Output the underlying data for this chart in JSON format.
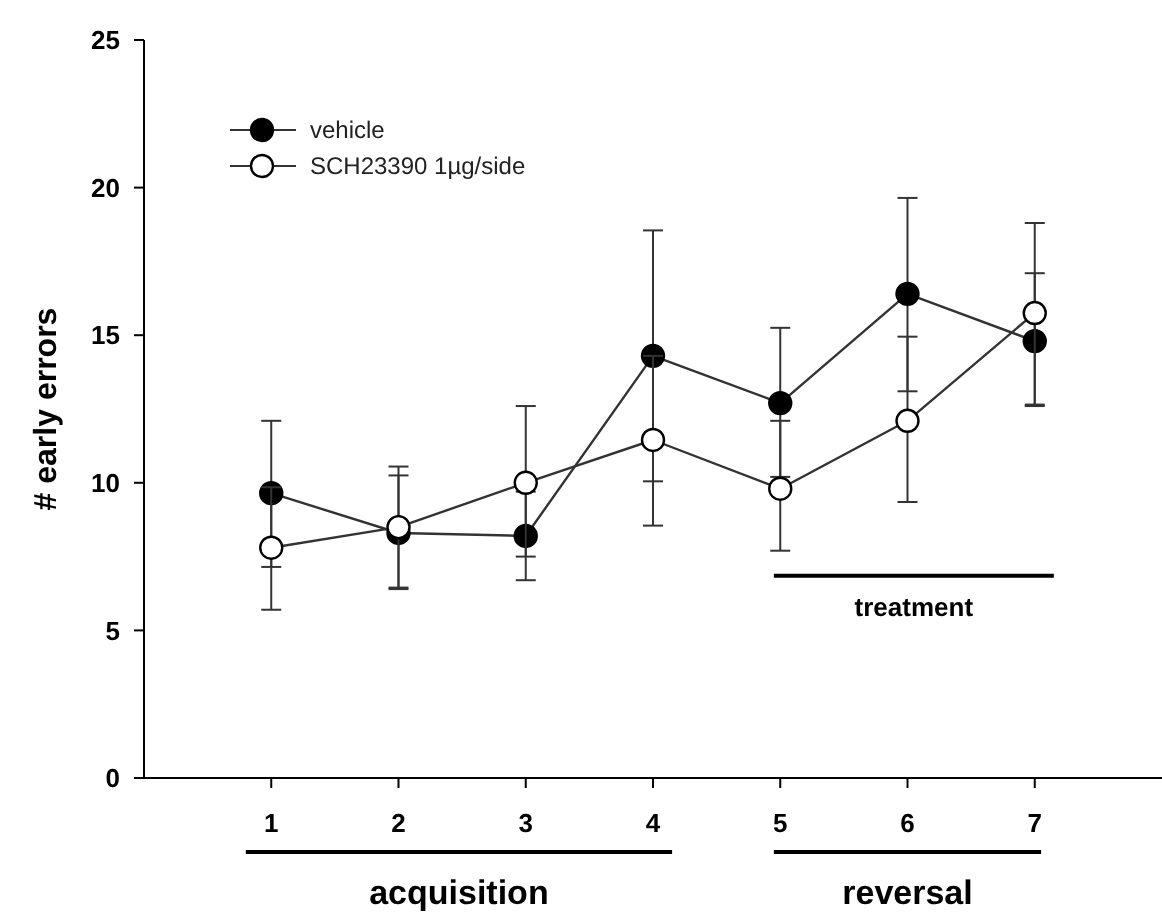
{
  "chart_data": {
    "type": "line",
    "ylabel": "# early errors",
    "xlim": [
      0,
      8
    ],
    "xticks": [
      1,
      2,
      3,
      4,
      5,
      6,
      7
    ],
    "ylim": [
      0,
      25
    ],
    "yticks": [
      0,
      5,
      10,
      15,
      20,
      25
    ],
    "x": [
      1,
      2,
      3,
      4,
      5,
      6,
      7
    ],
    "marker": "circle",
    "legend": "top left",
    "grid": false,
    "series": [
      {
        "name": "vehicle",
        "color": "#000000",
        "values": [
          9.65,
          8.3,
          8.2,
          14.3,
          12.7,
          16.4,
          14.8
        ],
        "errors": [
          [
            7.15,
            12.1
          ],
          [
            6.4,
            10.25
          ],
          [
            6.7,
            9.7
          ],
          [
            10.05,
            18.55
          ],
          [
            10.2,
            15.25
          ],
          [
            13.1,
            19.65
          ],
          [
            12.6,
            17.1
          ]
        ]
      },
      {
        "name": "SCH23390 1µg/side",
        "color": "#ffffff",
        "values": [
          7.8,
          8.5,
          10.0,
          11.45,
          9.8,
          12.1,
          15.75
        ],
        "errors": [
          [
            5.7,
            9.85
          ],
          [
            6.45,
            10.55
          ],
          [
            7.5,
            12.6
          ],
          [
            8.55,
            14.3
          ],
          [
            7.7,
            12.1
          ],
          [
            9.35,
            14.95
          ],
          [
            12.65,
            18.8
          ]
        ]
      }
    ],
    "annotations": [
      "treatment",
      "acquisition",
      "reversal"
    ]
  }
}
